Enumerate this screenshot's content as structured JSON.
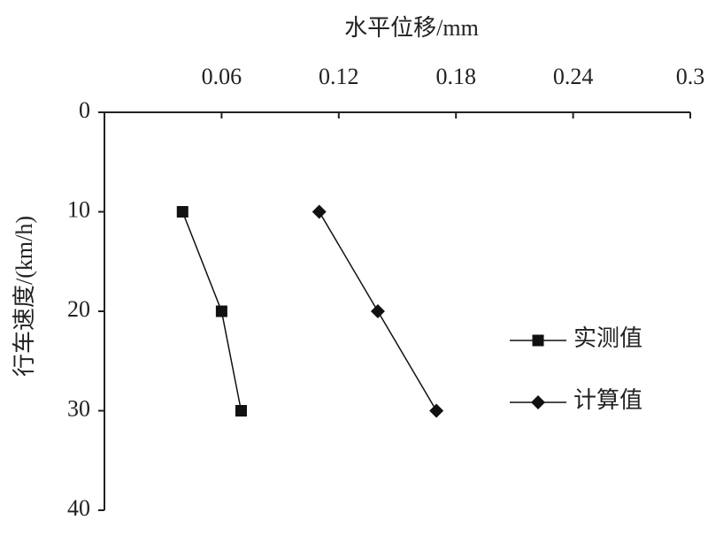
{
  "chart_data": {
    "type": "line",
    "x_label": "水平位移/mm",
    "y_label": "行车速度/(km/h)",
    "xlim": [
      0,
      0.3
    ],
    "xticks": [
      0.06,
      0.12,
      0.18,
      0.24,
      0.3
    ],
    "ylim": [
      0,
      40
    ],
    "yticks": [
      0,
      10,
      20,
      30,
      40
    ],
    "y_inverted": true,
    "x_axis_position": "top",
    "legend": "right",
    "series": [
      {
        "name": "实测值",
        "color": "#111111",
        "marker": "square",
        "x": [
          0.04,
          0.06,
          0.07
        ],
        "values": [
          10,
          20,
          30
        ]
      },
      {
        "name": "计算值",
        "color": "#111111",
        "marker": "diamond",
        "x": [
          0.11,
          0.14,
          0.17
        ],
        "values": [
          10,
          20,
          30
        ]
      }
    ]
  }
}
